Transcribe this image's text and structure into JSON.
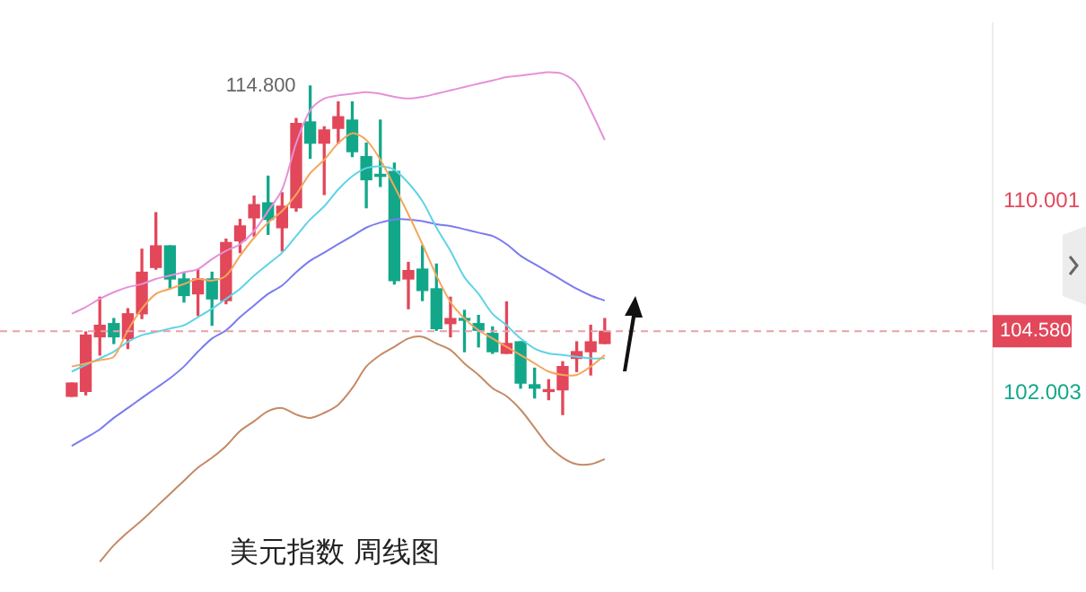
{
  "chart_data": {
    "type": "candlestick",
    "title": "美元指数 周线图",
    "categories": [
      null,
      null,
      null,
      null,
      null,
      null,
      null,
      null,
      null,
      null,
      null,
      null,
      null,
      null,
      null,
      null,
      null,
      null,
      null,
      null,
      null,
      null,
      null,
      null,
      null,
      null,
      null,
      null,
      null,
      null,
      null,
      null,
      null,
      null,
      null,
      null,
      null,
      null,
      null
    ],
    "ohlc": [
      [
        101.87,
        102.42,
        101.87,
        102.42
      ],
      [
        102.07,
        104.55,
        101.93,
        104.42
      ],
      [
        104.35,
        106.0,
        103.59,
        104.83
      ],
      [
        104.9,
        105.11,
        104.07,
        104.35
      ],
      [
        104.28,
        105.52,
        103.86,
        105.31
      ],
      [
        105.31,
        108.0,
        105.11,
        107.04
      ],
      [
        107.24,
        109.52,
        107.17,
        108.14
      ],
      [
        108.14,
        108.14,
        106.35,
        106.76
      ],
      [
        106.76,
        107.04,
        105.8,
        106.07
      ],
      [
        106.14,
        107.17,
        105.24,
        106.76
      ],
      [
        106.76,
        107.04,
        104.83,
        105.93
      ],
      [
        105.86,
        108.42,
        105.73,
        108.28
      ],
      [
        108.35,
        109.24,
        107.86,
        108.97
      ],
      [
        109.31,
        110.21,
        108.55,
        109.86
      ],
      [
        109.93,
        111.04,
        108.62,
        109.24
      ],
      [
        108.9,
        110.35,
        107.93,
        109.79
      ],
      [
        109.73,
        113.45,
        109.59,
        113.24
      ],
      [
        113.31,
        114.8,
        111.79,
        112.42
      ],
      [
        112.42,
        113.1,
        110.28,
        112.97
      ],
      [
        113.04,
        114.14,
        112.42,
        113.52
      ],
      [
        113.38,
        114.14,
        111.86,
        112.07
      ],
      [
        111.86,
        112.42,
        109.73,
        110.9
      ],
      [
        111.1,
        113.38,
        110.62,
        111.04
      ],
      [
        111.24,
        111.59,
        106.55,
        106.69
      ],
      [
        106.76,
        107.45,
        105.52,
        107.11
      ],
      [
        107.17,
        108.14,
        105.86,
        106.28
      ],
      [
        106.35,
        107.38,
        104.62,
        104.69
      ],
      [
        104.9,
        106.0,
        104.35,
        105.11
      ],
      [
        105.11,
        105.45,
        103.73,
        105.04
      ],
      [
        104.9,
        105.24,
        103.93,
        104.62
      ],
      [
        104.49,
        104.76,
        103.66,
        103.73
      ],
      [
        103.66,
        105.8,
        103.66,
        104.07
      ],
      [
        104.14,
        104.14,
        102.21,
        102.42
      ],
      [
        102.35,
        103.04,
        101.8,
        102.21
      ],
      [
        102.07,
        102.56,
        101.73,
        102.14
      ],
      [
        102.14,
        103.31,
        101.11,
        103.11
      ],
      [
        103.45,
        104.14,
        102.9,
        103.73
      ],
      [
        103.73,
        104.83,
        102.76,
        104.14
      ],
      [
        104.07,
        105.11,
        104.07,
        104.58
      ]
    ],
    "series": [
      {
        "type": "line",
        "color": "#e591d9",
        "values": [
          105.31,
          105.59,
          105.93,
          106.21,
          106.42,
          106.55,
          106.76,
          106.9,
          107.04,
          107.17,
          107.59,
          107.93,
          108.21,
          108.76,
          109.59,
          110.49,
          112.42,
          113.79,
          114.28,
          114.41,
          114.48,
          114.55,
          114.48,
          114.35,
          114.28,
          114.35,
          114.48,
          114.62,
          114.76,
          114.9,
          115.03,
          115.17,
          115.24,
          115.31,
          115.38,
          115.31,
          114.9,
          113.79,
          112.55
        ]
      },
      {
        "type": "line",
        "color": "#f5a65b",
        "values": [
          103.11,
          103.24,
          103.38,
          103.52,
          104.62,
          105.52,
          106.14,
          106.35,
          106.55,
          106.76,
          106.69,
          106.9,
          107.73,
          108.48,
          109.11,
          109.59,
          110.28,
          111.17,
          111.73,
          112.42,
          112.83,
          112.55,
          111.73,
          110.62,
          109.45,
          108.21,
          106.9,
          105.8,
          105.11,
          104.62,
          104.28,
          103.93,
          103.59,
          103.24,
          102.9,
          102.76,
          102.76,
          103.11,
          103.59
        ]
      },
      {
        "type": "line",
        "color": "#5fd3e6",
        "values": [
          102.9,
          103.18,
          103.45,
          103.73,
          104.14,
          104.42,
          104.55,
          104.69,
          104.83,
          105.17,
          105.52,
          105.93,
          106.35,
          106.9,
          107.38,
          107.86,
          108.55,
          109.24,
          109.79,
          110.49,
          111.04,
          111.38,
          111.45,
          111.31,
          110.76,
          110.0,
          108.9,
          107.93,
          106.83,
          106.14,
          105.31,
          104.83,
          104.28,
          103.86,
          103.66,
          103.59,
          103.52,
          103.45,
          103.45
        ]
      },
      {
        "type": "line",
        "color": "#7b7bf0",
        "values": [
          99.8,
          100.14,
          100.49,
          100.97,
          101.38,
          101.8,
          102.21,
          102.62,
          103.11,
          103.73,
          104.28,
          104.62,
          105.17,
          105.66,
          106.14,
          106.49,
          107.04,
          107.52,
          107.86,
          108.21,
          108.55,
          108.9,
          109.11,
          109.24,
          109.24,
          109.17,
          109.04,
          108.97,
          108.83,
          108.69,
          108.55,
          108.21,
          107.73,
          107.38,
          107.04,
          106.69,
          106.35,
          106.07,
          105.86
        ]
      },
      {
        "type": "line",
        "color": "#c48a66",
        "values": [
          null,
          null,
          94.97,
          95.66,
          96.21,
          96.7,
          97.25,
          97.8,
          98.35,
          98.9,
          99.31,
          99.8,
          100.42,
          100.83,
          101.25,
          101.38,
          101.11,
          100.97,
          101.18,
          101.52,
          102.21,
          103.11,
          103.59,
          103.93,
          104.28,
          104.35,
          104.07,
          103.8,
          103.24,
          102.76,
          102.21,
          101.87,
          101.31,
          100.56,
          99.8,
          99.31,
          99.04,
          99.04,
          99.25
        ]
      }
    ],
    "ylim": [
      94.7,
      117.4
    ],
    "yticks": [
      110.001,
      102.003
    ],
    "ref_lines": [
      {
        "axis": "y",
        "value": 104.58,
        "label": "104.580",
        "color": "#e8a0a8",
        "line_style": "dashed"
      }
    ],
    "annotations": [
      "114.800"
    ],
    "tick_labels": "y"
  }
}
